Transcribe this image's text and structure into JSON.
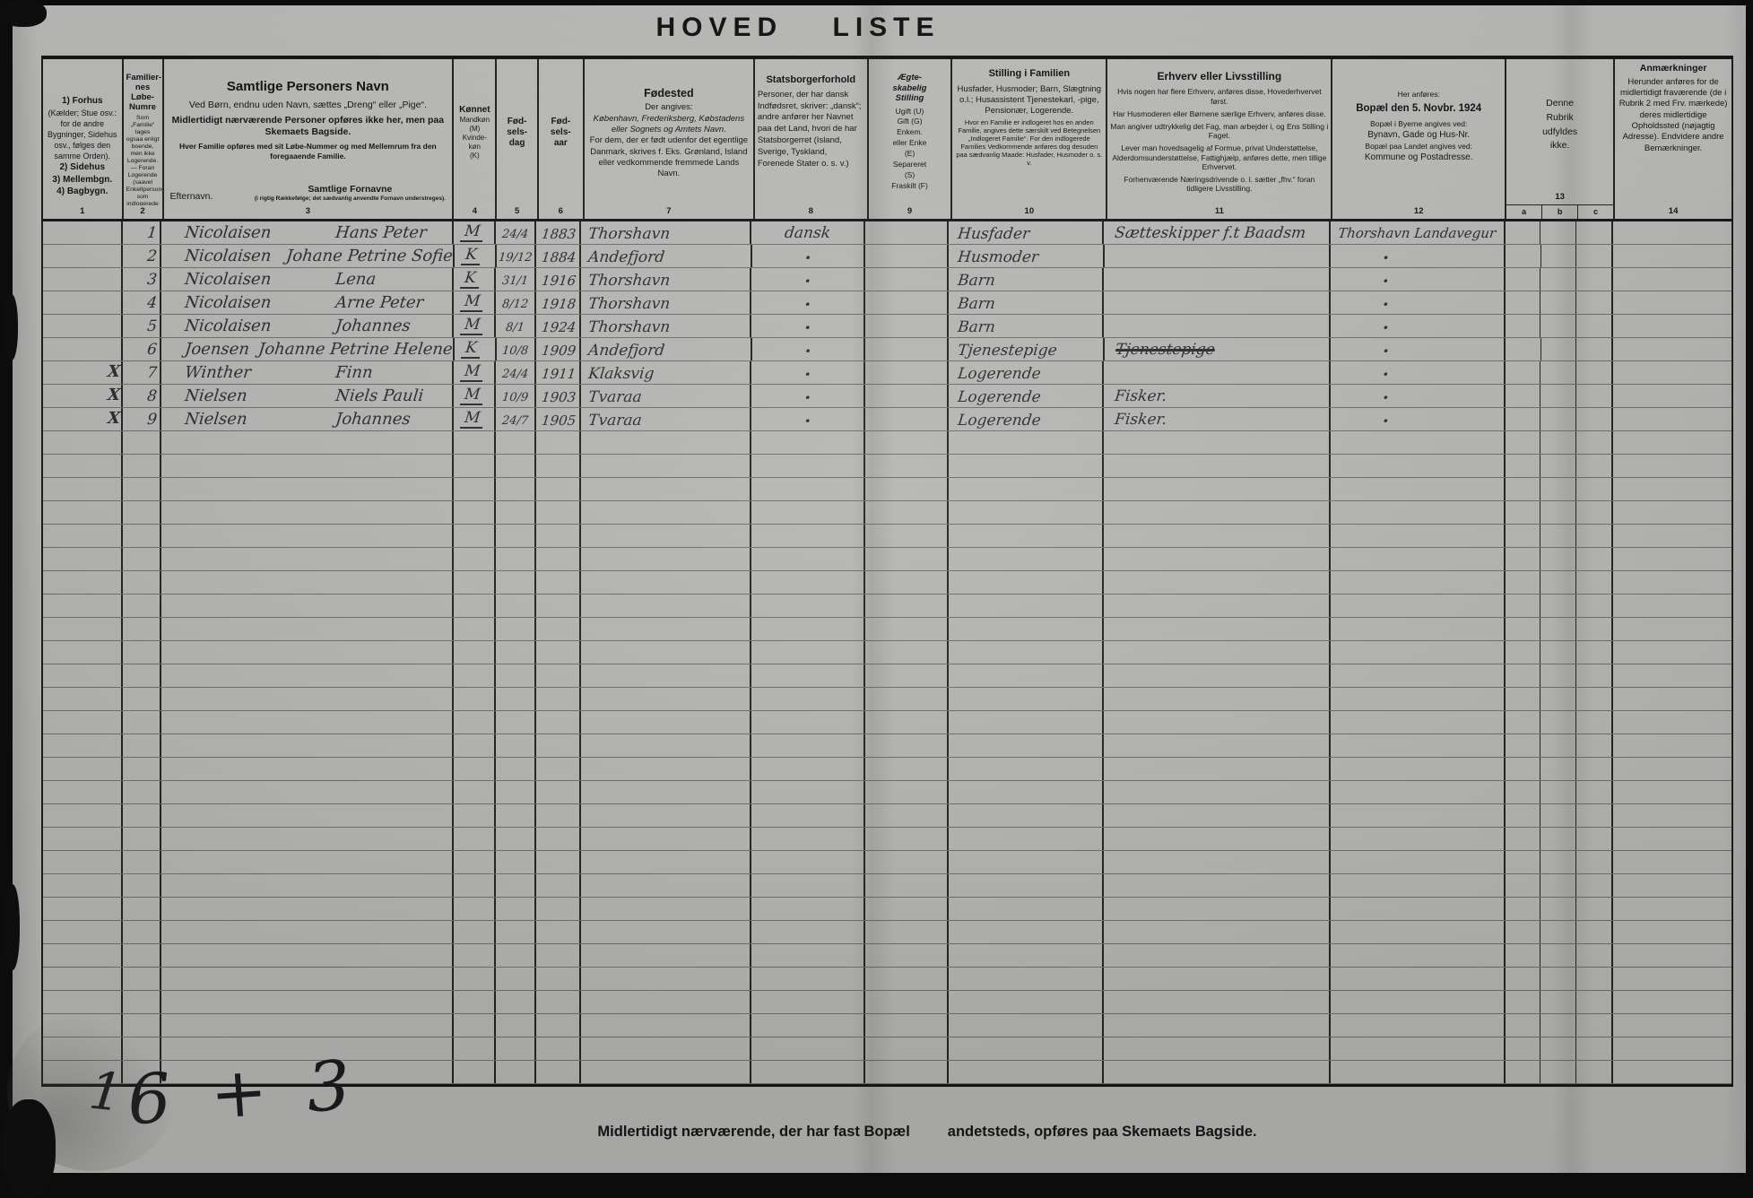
{
  "title": "HOVED LISTE",
  "header": {
    "c1": {
      "l1": "1) Forhus",
      "l2": "(Kælder; Stue osv.: for de andre Bygninger, Sidehus osv., følges den samme Orden).",
      "l3": "2) Sidehus",
      "l4": "3) Mellembgn.",
      "l5": "4) Bagbygn.",
      "num": "1"
    },
    "c2": {
      "t1": "Familier-\nnes\nLøbe-\nNumre",
      "small": "Som „Familie“ tages ogsaa enligt boende, men ikke Logerende. — Foran Logerende (saavel Enkeltpersoner som indlogerede Familiers Medlemmer) sættes X. Foran midlertidigt fraværende sættes Frv. (jfr. Rubr. 14)",
      "num": "2"
    },
    "c3": {
      "title": "Samtlige Personers Navn",
      "p1": "Ved Børn, endnu uden Navn, sættes „Dreng“ eller „Pige“.",
      "p2": "Midlertidigt nærværende Personer opføres ikke her, men paa Skemaets Bagside.",
      "p3": "Hver Familie opføres med sit Løbe-Nummer og med Mellemrum fra den foregaaende Familie.",
      "surname_label": "Efternavn.",
      "firstnames_label": "Samtlige Fornavne",
      "firstnames_note": "(i rigtig Rækkefølge; det sædvanlig anvendte Fornavn understreges).",
      "num": "3"
    },
    "c4": {
      "title": "Kønnet",
      "l1": "Mandkøn\n(M)",
      "l2": "Kvinde-\nkøn\n(K)",
      "num": "4"
    },
    "c5": {
      "title": "Fød-\nsels-\ndag",
      "num": "5"
    },
    "c6": {
      "title": "Fød-\nsels-\naar",
      "num": "6"
    },
    "c7": {
      "title": "Fødested",
      "sub": "Der angives:",
      "p1": "København, Frederiksberg, Købstadens eller Sognets og Amtets Navn.",
      "p2": "For dem, der er født udenfor det egentlige Danmark, skrives f. Eks. Grønland, Island eller vedkommende fremmede Lands Navn.",
      "num": "7"
    },
    "c8": {
      "title": "Statsborgerforhold",
      "p1": "Personer, der har dansk Indfødsret, skriver: „dansk“; andre anfører her Navnet paa det Land, hvori de har Statsborgerret (Island, Sverige, Tyskland, Forenede Stater o. s. v.)",
      "num": "8"
    },
    "c9": {
      "title": "Ægte-\nskabelig\nStilling",
      "p1": "Ugift (U)\nGift (G)\nEnkem.\neller Enke\n(E)\nSepareret\n(S)\nFraskilt (F)",
      "num": "9"
    },
    "c10": {
      "title": "Stilling i Familien",
      "p1": "Husfader, Husmoder; Barn, Slægtning o.l.; Husassistent Tjenestekarl, -pige, Pensionær, Logerende.",
      "p2": "Hvor en Familie er indlogeret hos en anden Familie, angives dette særskilt ved Betegnelsen „Indlogeret Familie“. For den indlogerede Families Vedkommende anføres dog desuden paa sædvanlig Maade: Husfader, Husmoder o. s. v.",
      "num": "10"
    },
    "c11": {
      "title": "Erhverv eller Livsstilling",
      "p1": "Hvis nogen har flere Erhverv, anføres disse, Hovederhvervet først.",
      "p2": "Har Husmoderen eller Børnene særlige Erhverv, anføres disse.",
      "p3": "Man angiver udtrykkelig det Fag, man arbejder i, og Ens Stilling i Faget.",
      "p4": "Lever man hovedsagelig af Formue, privat Understøttelse, Alderdomsunderstøttelse, Fattighjælp, anføres dette, men tillige Erhvervet.",
      "p5": "Forhenværende Næringsdrivende o. l. sætter „fhv.“ foran tidligere Livsstilling.",
      "num": "11"
    },
    "c12": {
      "sub": "Her anføres:",
      "title": "Bopæl den 5. Novbr. 1924",
      "p1": "Bopæl i Byerne angives ved:",
      "p2": "Bynavn, Gade og Hus-Nr.",
      "p3": "Bopæl paa Landet angives ved:",
      "p4": "Kommune og Postadresse.",
      "num": "12"
    },
    "c13": {
      "p1": "Denne\nRubrik\nudfyldes\nikke.",
      "num": "13",
      "sub": [
        "a",
        "b",
        "c"
      ]
    },
    "c14": {
      "title": "Anmærkninger",
      "p1": "Herunder anføres for de midlertidigt fraværende (de i Rubrik 2 med Frv. mærkede) deres midlertidige Opholdssted (nøjagtig Adresse). Endvidere andre Bemærkninger.",
      "num": "14"
    }
  },
  "table": {
    "rows": [
      {
        "mark": "",
        "no": "1",
        "surname": "Nicolaisen",
        "firstnames": "Hans Peter",
        "sex": "M",
        "day": "24/4",
        "year": "1883",
        "birthplace": "Thorshavn",
        "citizenship": "dansk",
        "family": "Husfader",
        "occupation": "Sætteskipper f.t Baadsm",
        "occupation_struck": false,
        "residence": "Thorshavn Landavegur"
      },
      {
        "mark": "",
        "no": "2",
        "surname": "Nicolaisen",
        "firstnames": "Johane Petrine Sofie",
        "sex": "K",
        "day": "19/12",
        "year": "1884",
        "birthplace": "Andefjord",
        "citizenship": "·",
        "family": "Husmoder",
        "occupation": "",
        "occupation_struck": false,
        "residence": "·"
      },
      {
        "mark": "",
        "no": "3",
        "surname": "Nicolaisen",
        "firstnames": "Lena",
        "sex": "K",
        "day": "31/1",
        "year": "1916",
        "birthplace": "Thorshavn",
        "citizenship": "·",
        "family": "Barn",
        "occupation": "",
        "occupation_struck": false,
        "residence": "·"
      },
      {
        "mark": "",
        "no": "4",
        "surname": "Nicolaisen",
        "firstnames": "Arne Peter",
        "sex": "M",
        "day": "8/12",
        "year": "1918",
        "birthplace": "Thorshavn",
        "citizenship": "·",
        "family": "Barn",
        "occupation": "",
        "occupation_struck": false,
        "residence": "·"
      },
      {
        "mark": "",
        "no": "5",
        "surname": "Nicolaisen",
        "firstnames": "Johannes",
        "sex": "M",
        "day": "8/1",
        "year": "1924",
        "birthplace": "Thorshavn",
        "citizenship": "·",
        "family": "Barn",
        "occupation": "",
        "occupation_struck": false,
        "residence": "·"
      },
      {
        "mark": "",
        "no": "6",
        "surname": "Joensen",
        "firstnames": "Johanne Petrine Helene",
        "sex": "K",
        "day": "10/8",
        "year": "1909",
        "birthplace": "Andefjord",
        "citizenship": "·",
        "family": "Tjenestepige",
        "occupation": "Tjenestepige",
        "occupation_struck": true,
        "residence": "·"
      },
      {
        "mark": "X",
        "no": "7",
        "surname": "Winther",
        "firstnames": "Finn",
        "sex": "M",
        "day": "24/4",
        "year": "1911",
        "birthplace": "Klaksvig",
        "citizenship": "·",
        "family": "Logerende",
        "occupation": "",
        "occupation_struck": false,
        "residence": "·"
      },
      {
        "mark": "X",
        "no": "8",
        "surname": "Nielsen",
        "firstnames": "Niels Pauli",
        "sex": "M",
        "day": "10/9",
        "year": "1903",
        "birthplace": "Tvaraa",
        "citizenship": "·",
        "family": "Logerende",
        "occupation": "Fisker.",
        "occupation_struck": false,
        "residence": "·"
      },
      {
        "mark": "X",
        "no": "9",
        "surname": "Nielsen",
        "firstnames": "Johannes",
        "sex": "M",
        "day": "24/7",
        "year": "1905",
        "birthplace": "Tvaraa",
        "citizenship": "·",
        "family": "Logerende",
        "occupation": "Fisker.",
        "occupation_struck": false,
        "residence": "·"
      }
    ]
  },
  "footer": {
    "note_left": "Midlertidigt nærværende, der har fast Bopæl",
    "note_right": "andetsteds, opføres paa Skemaets Bagside.",
    "tally_stroke": "1",
    "tally": "6 + 3"
  }
}
